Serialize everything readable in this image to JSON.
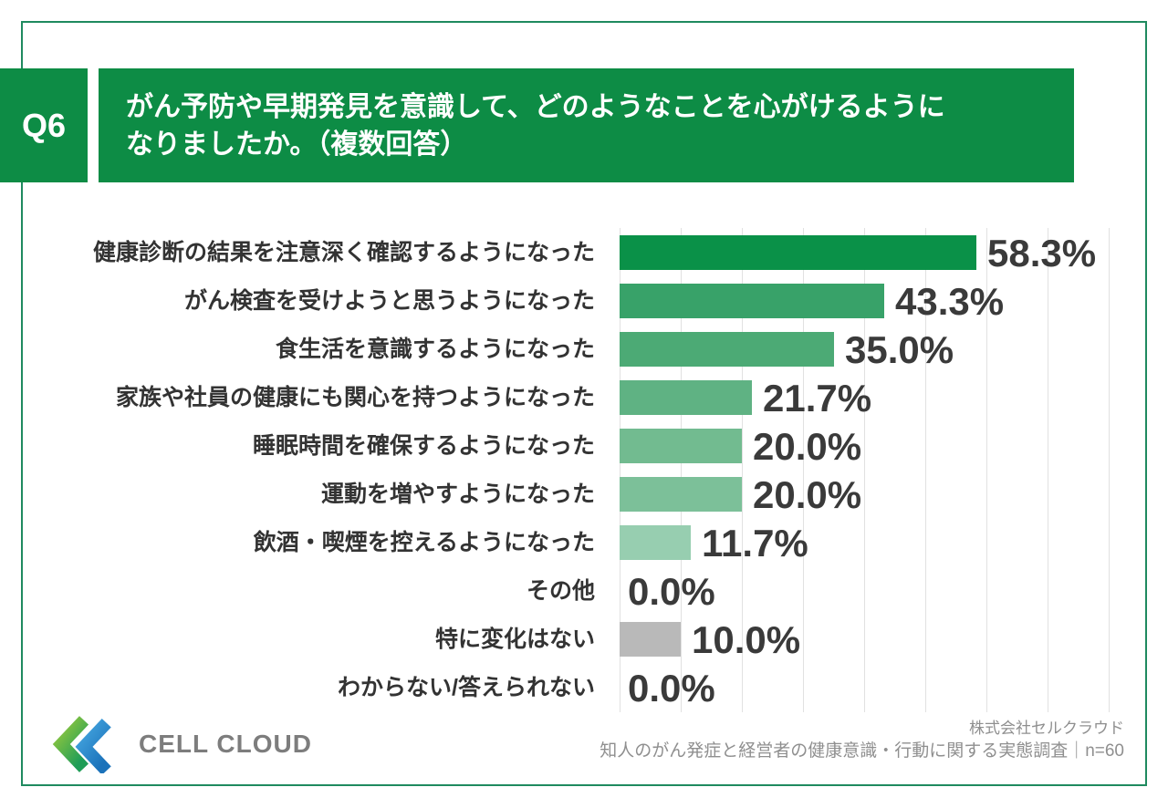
{
  "colors": {
    "frame": "#1f8a5f",
    "header_bg": "#0d8c45",
    "gridline": "#e1e1e1",
    "label_text": "#333333",
    "value_text": "#3a3a3a",
    "footer_text": "#8f8f8f",
    "logo_text_color": "#7d7d7d"
  },
  "header": {
    "q_label": "Q6",
    "title_line1": "がん予防や早期発見を意識して、どのようなことを心がけるように",
    "title_line2": "なりましたか。（複数回答）"
  },
  "chart_data": {
    "type": "bar",
    "orientation": "horizontal",
    "unit": "%",
    "xlim": [
      0,
      100
    ],
    "gridline_interval_percent": 10,
    "gridline_max_percent": 80,
    "legend": "none",
    "categories": [
      "健康診断の結果を注意深く確認するようになった",
      "がん検査を受けようと思うようになった",
      "食生活を意識するようになった",
      "家族や社員の健康にも関心を持つようになった",
      "睡眠時間を確保するようになった",
      "運動を増やすようになった",
      "飲酒・喫煙を控えるようになった",
      "その他",
      "特に変化はない",
      "わからない/答えられない"
    ],
    "values": [
      58.3,
      43.3,
      35.0,
      21.7,
      20.0,
      20.0,
      11.7,
      0.0,
      10.0,
      0.0
    ],
    "value_labels": [
      "58.3%",
      "43.3%",
      "35.0%",
      "21.7%",
      "20.0%",
      "20.0%",
      "11.7%",
      "0.0%",
      "10.0%",
      "0.0%"
    ],
    "bar_colors": [
      "#0a9148",
      "#38a269",
      "#4caa75",
      "#5fb283",
      "#72bb90",
      "#7cc099",
      "#97ceb0",
      null,
      "#b9b9b9",
      null
    ]
  },
  "footer": {
    "logo_text": "CELL CLOUD",
    "company": "株式会社セルクラウド",
    "survey": "知人のがん発症と経営者の健康意識・行動に関する実態調査｜n=60"
  }
}
